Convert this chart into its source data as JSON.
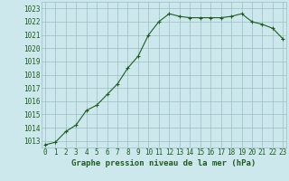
{
  "x": [
    0,
    1,
    2,
    3,
    4,
    5,
    6,
    7,
    8,
    9,
    10,
    11,
    12,
    13,
    14,
    15,
    16,
    17,
    18,
    19,
    20,
    21,
    22,
    23
  ],
  "y": [
    1012.7,
    1012.9,
    1013.7,
    1014.2,
    1015.3,
    1015.7,
    1016.5,
    1017.3,
    1018.5,
    1019.4,
    1021.0,
    1022.0,
    1022.6,
    1022.4,
    1022.3,
    1022.3,
    1022.3,
    1022.3,
    1022.4,
    1022.6,
    1022.0,
    1021.8,
    1021.5,
    1020.7
  ],
  "line_color": "#1e5c1e",
  "marker": "+",
  "marker_size": 3,
  "marker_linewidth": 0.8,
  "line_width": 0.8,
  "bg_color": "#cce8ec",
  "grid_color": "#9bbfc4",
  "xlabel": "Graphe pression niveau de la mer (hPa)",
  "ylim": [
    1012.5,
    1023.5
  ],
  "yticks": [
    1013,
    1014,
    1015,
    1016,
    1017,
    1018,
    1019,
    1020,
    1021,
    1022,
    1023
  ],
  "xticks": [
    0,
    1,
    2,
    3,
    4,
    5,
    6,
    7,
    8,
    9,
    10,
    11,
    12,
    13,
    14,
    15,
    16,
    17,
    18,
    19,
    20,
    21,
    22,
    23
  ],
  "xlim": [
    -0.3,
    23.3
  ],
  "tick_fontsize": 5.5,
  "xlabel_fontsize": 6.5
}
